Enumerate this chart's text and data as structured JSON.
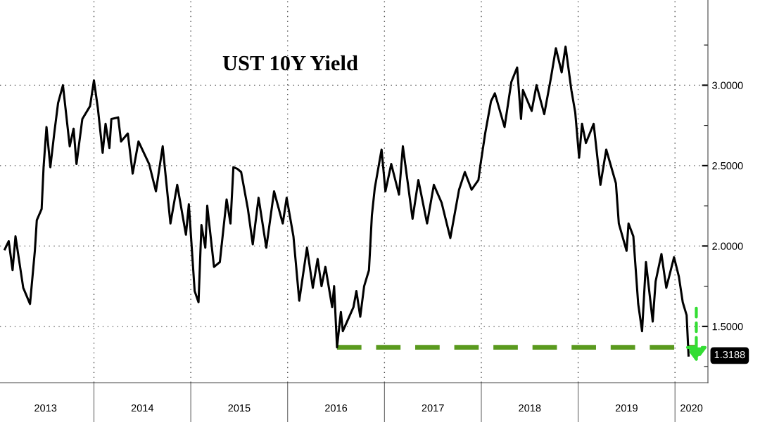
{
  "chart_data": {
    "type": "line",
    "title": "UST 10Y Yield",
    "xlim": [
      2013.03,
      2020.34
    ],
    "xticks": [
      {
        "value": 2014,
        "label": null
      },
      {
        "value": 2015,
        "label": null
      },
      {
        "value": 2016,
        "label": null
      },
      {
        "value": 2017,
        "label": null
      },
      {
        "value": 2018,
        "label": null
      },
      {
        "value": 2019,
        "label": null
      },
      {
        "value": 2020,
        "label": null
      },
      {
        "value": 2013.5,
        "label": "2013"
      },
      {
        "value": 2014.5,
        "label": "2014"
      },
      {
        "value": 2015.5,
        "label": "2015"
      },
      {
        "value": 2016.5,
        "label": "2016"
      },
      {
        "value": 2017.5,
        "label": "2017"
      },
      {
        "value": 2018.5,
        "label": "2018"
      },
      {
        "value": 2019.5,
        "label": "2019"
      },
      {
        "value": 2020.17,
        "label": "2020"
      }
    ],
    "ylim": [
      1.15,
      3.53
    ],
    "yticks": [
      {
        "value": 1.25,
        "label": null
      },
      {
        "value": 1.5,
        "label": "1.5000"
      },
      {
        "value": 1.75,
        "label": null
      },
      {
        "value": 2.0,
        "label": "2.0000"
      },
      {
        "value": 2.25,
        "label": null
      },
      {
        "value": 2.5,
        "label": "2.5000"
      },
      {
        "value": 2.75,
        "label": null
      },
      {
        "value": 3.0,
        "label": "3.0000"
      },
      {
        "value": 3.25,
        "label": null
      }
    ],
    "grid": true,
    "series": [
      {
        "color": "#000000",
        "line_style": "solid",
        "x": [
          2013.08,
          2013.12,
          2013.16,
          2013.19,
          2013.27,
          2013.34,
          2013.39,
          2013.41,
          2013.46,
          2013.48,
          2013.51,
          2013.55,
          2013.59,
          2013.63,
          2013.68,
          2013.75,
          2013.79,
          2013.82,
          2013.88,
          2013.96,
          2014.0,
          2014.04,
          2014.09,
          2014.12,
          2014.16,
          2014.18,
          2014.25,
          2014.28,
          2014.35,
          2014.4,
          2014.46,
          2014.57,
          2014.64,
          2014.71,
          2014.79,
          2014.86,
          2014.95,
          2014.98,
          2015.04,
          2015.08,
          2015.11,
          2015.15,
          2015.17,
          2015.24,
          2015.3,
          2015.37,
          2015.41,
          2015.44,
          2015.48,
          2015.52,
          2015.59,
          2015.64,
          2015.7,
          2015.78,
          2015.86,
          2015.95,
          2015.99,
          2016.06,
          2016.12,
          2016.2,
          2016.26,
          2016.31,
          2016.35,
          2016.39,
          2016.46,
          2016.48,
          2016.51,
          2016.55,
          2016.57,
          2016.68,
          2016.71,
          2016.75,
          2016.79,
          2016.84,
          2016.87,
          2016.9,
          2016.97,
          2017.01,
          2017.07,
          2017.15,
          2017.19,
          2017.29,
          2017.35,
          2017.44,
          2017.51,
          2017.59,
          2017.68,
          2017.77,
          2017.83,
          2017.9,
          2017.97,
          2017.99,
          2018.04,
          2018.1,
          2018.14,
          2018.24,
          2018.31,
          2018.37,
          2018.41,
          2018.43,
          2018.52,
          2018.57,
          2018.65,
          2018.72,
          2018.77,
          2018.83,
          2018.87,
          2018.93,
          2018.97,
          2019.01,
          2019.04,
          2019.08,
          2019.16,
          2019.23,
          2019.29,
          2019.39,
          2019.42,
          2019.5,
          2019.52,
          2019.57,
          2019.62,
          2019.66,
          2019.7,
          2019.77,
          2019.8,
          2019.86,
          2019.91,
          2019.99,
          2020.04,
          2020.08,
          2020.12,
          2020.14
        ],
        "values": [
          1.98,
          2.03,
          1.85,
          2.06,
          1.74,
          1.64,
          1.97,
          2.16,
          2.23,
          2.49,
          2.74,
          2.49,
          2.7,
          2.89,
          3.0,
          2.62,
          2.73,
          2.51,
          2.79,
          2.87,
          3.03,
          2.86,
          2.58,
          2.76,
          2.61,
          2.79,
          2.8,
          2.65,
          2.7,
          2.45,
          2.65,
          2.51,
          2.34,
          2.62,
          2.14,
          2.38,
          2.07,
          2.26,
          1.72,
          1.65,
          2.13,
          1.99,
          2.25,
          1.87,
          1.9,
          2.29,
          2.14,
          2.49,
          2.48,
          2.46,
          2.23,
          2.01,
          2.3,
          1.99,
          2.34,
          2.14,
          2.3,
          2.06,
          1.66,
          1.99,
          1.74,
          1.92,
          1.75,
          1.87,
          1.62,
          1.75,
          1.37,
          1.59,
          1.47,
          1.62,
          1.72,
          1.56,
          1.75,
          1.85,
          2.19,
          2.36,
          2.6,
          2.34,
          2.51,
          2.32,
          2.62,
          2.17,
          2.41,
          2.14,
          2.38,
          2.27,
          2.05,
          2.35,
          2.46,
          2.35,
          2.41,
          2.5,
          2.7,
          2.9,
          2.95,
          2.74,
          3.02,
          3.11,
          2.79,
          2.97,
          2.84,
          3.0,
          2.82,
          3.05,
          3.23,
          3.08,
          3.24,
          2.97,
          2.83,
          2.55,
          2.76,
          2.64,
          2.76,
          2.38,
          2.6,
          2.39,
          2.14,
          1.97,
          2.14,
          2.06,
          1.64,
          1.47,
          1.9,
          1.53,
          1.78,
          1.95,
          1.74,
          1.93,
          1.81,
          1.65,
          1.57,
          1.3188
        ]
      },
      {
        "color": "#5a9a1e",
        "line_style": "dashed",
        "x": [
          2016.51,
          2020.22
        ],
        "values": [
          1.37,
          1.37
        ]
      }
    ],
    "annotations": [
      {
        "text": "1.3188",
        "x": 2020.14,
        "y": 1.3188
      }
    ]
  }
}
